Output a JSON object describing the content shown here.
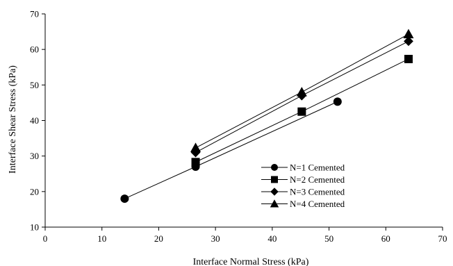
{
  "chart_data": {
    "type": "line",
    "xlabel": "Interface Normal Stress (kPa)",
    "ylabel": "Interface Shear Stress (kPa)",
    "xlim": [
      0,
      70
    ],
    "ylim": [
      10,
      70
    ],
    "xticks": [
      0,
      10,
      20,
      30,
      40,
      50,
      60,
      70
    ],
    "yticks": [
      10,
      20,
      30,
      40,
      50,
      60,
      70
    ],
    "grid": false,
    "legend_position": "center-right",
    "series": [
      {
        "name": "N=1 Cemented",
        "marker": "circle",
        "color": "#000000",
        "points": [
          [
            14.0,
            18.0
          ],
          [
            26.5,
            27.0
          ],
          [
            51.5,
            45.3
          ]
        ]
      },
      {
        "name": "N=2 Cemented",
        "marker": "square",
        "color": "#000000",
        "points": [
          [
            26.5,
            28.3
          ],
          [
            45.2,
            42.5
          ],
          [
            64.0,
            57.3
          ]
        ]
      },
      {
        "name": "N=3 Cemented",
        "marker": "diamond",
        "color": "#000000",
        "points": [
          [
            26.5,
            31.0
          ],
          [
            45.2,
            47.0
          ],
          [
            64.0,
            62.3
          ]
        ]
      },
      {
        "name": "N=4 Cemented",
        "marker": "triangle",
        "color": "#000000",
        "points": [
          [
            26.5,
            32.3
          ],
          [
            45.2,
            48.0
          ],
          [
            64.0,
            64.3
          ]
        ]
      }
    ]
  }
}
